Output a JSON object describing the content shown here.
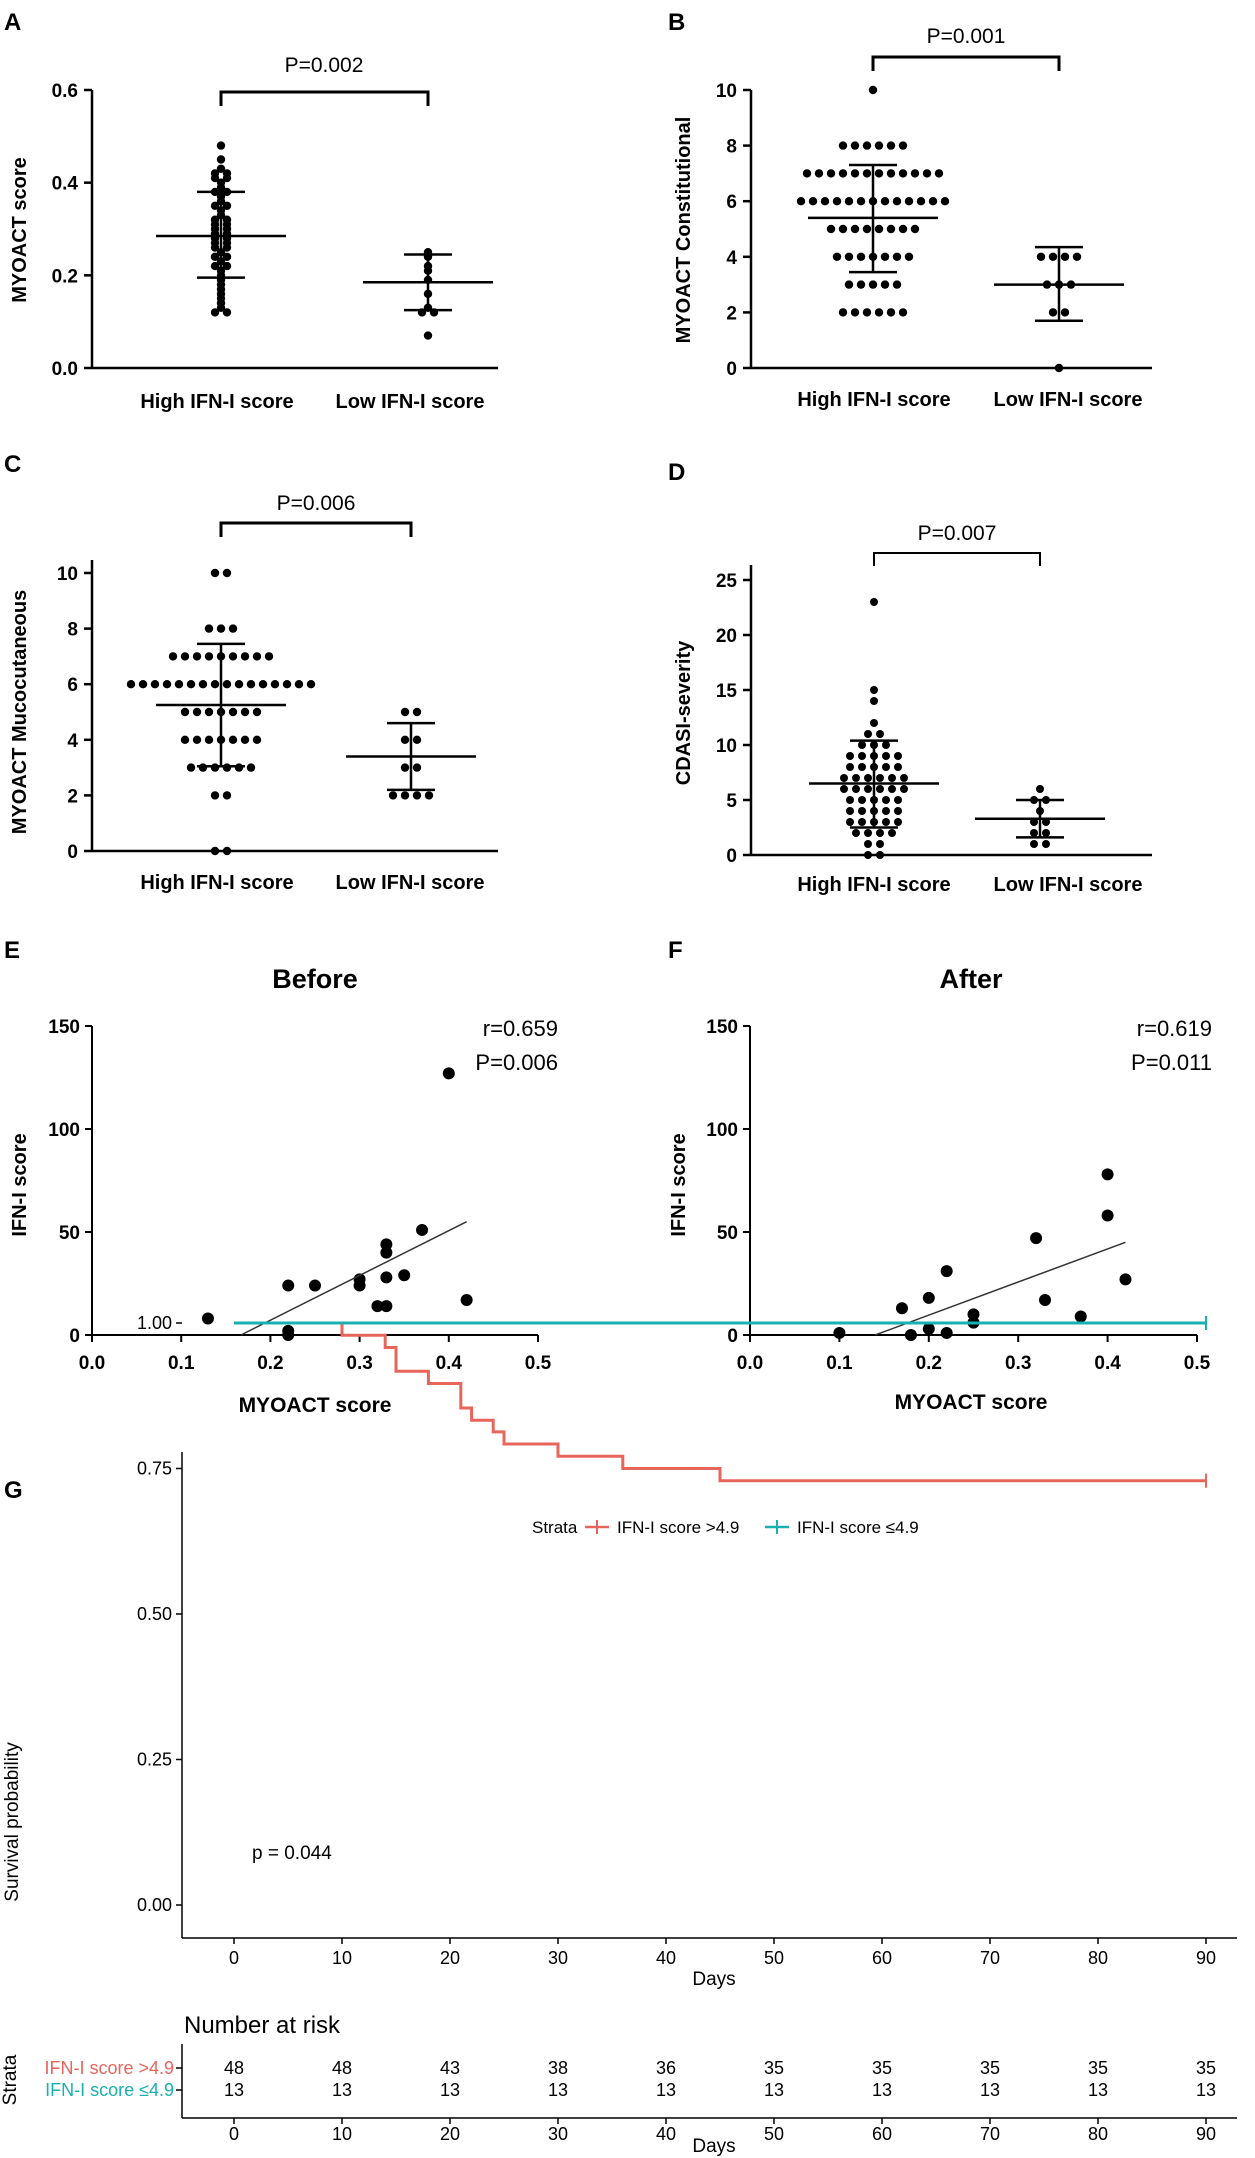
{
  "chart_data": [
    {
      "id": "A",
      "type": "scatter",
      "panel_label": "A",
      "ylabel": "MYOACT score",
      "ylim": [
        0,
        0.6
      ],
      "yticks": [
        "0.0",
        "0.2",
        "0.4",
        "0.6"
      ],
      "ytick_values": [
        0,
        0.2,
        0.4,
        0.6
      ],
      "categories": [
        "High IFN-I score",
        "Low IFN-I score"
      ],
      "pvalue": "P=0.002",
      "groups": [
        {
          "name": "High IFN-I score",
          "mean": 0.285,
          "sd_low": 0.195,
          "sd_high": 0.38,
          "values": [
            0.48,
            0.45,
            0.43,
            0.42,
            0.42,
            0.41,
            0.41,
            0.4,
            0.39,
            0.38,
            0.38,
            0.37,
            0.36,
            0.35,
            0.35,
            0.34,
            0.33,
            0.32,
            0.32,
            0.31,
            0.31,
            0.3,
            0.3,
            0.29,
            0.29,
            0.28,
            0.28,
            0.27,
            0.27,
            0.26,
            0.26,
            0.25,
            0.24,
            0.24,
            0.23,
            0.22,
            0.22,
            0.21,
            0.2,
            0.19,
            0.18,
            0.17,
            0.16,
            0.15,
            0.14,
            0.13,
            0.12,
            0.12
          ]
        },
        {
          "name": "Low IFN-I score",
          "mean": 0.185,
          "sd_low": 0.125,
          "sd_high": 0.245,
          "values": [
            0.25,
            0.24,
            0.22,
            0.21,
            0.19,
            0.16,
            0.13,
            0.12,
            0.12,
            0.07
          ]
        }
      ]
    },
    {
      "id": "B",
      "type": "scatter",
      "panel_label": "B",
      "ylabel": "MYOACT Constitutional",
      "ylim": [
        0,
        10
      ],
      "yticks": [
        "0",
        "2",
        "4",
        "6",
        "8",
        "10"
      ],
      "ytick_values": [
        0,
        2,
        4,
        6,
        8,
        10
      ],
      "categories": [
        "High IFN-I score",
        "Low IFN-I score"
      ],
      "pvalue": "P=0.001",
      "groups": [
        {
          "name": "High IFN-I score",
          "mean": 5.4,
          "sd_low": 3.45,
          "sd_high": 7.3,
          "values": [
            10,
            8,
            8,
            8,
            8,
            8,
            8,
            7,
            7,
            7,
            7,
            7,
            7,
            7,
            7,
            7,
            7,
            7,
            7,
            6,
            6,
            6,
            6,
            6,
            6,
            6,
            6,
            6,
            6,
            6,
            6,
            6,
            5,
            5,
            5,
            5,
            5,
            5,
            5,
            5,
            4,
            4,
            4,
            4,
            4,
            4,
            4,
            3,
            3,
            3,
            3,
            3,
            2,
            2,
            2,
            2,
            2,
            2
          ]
        },
        {
          "name": "Low IFN-I score",
          "mean": 3.0,
          "sd_low": 1.7,
          "sd_high": 4.35,
          "values": [
            4,
            4,
            4,
            4,
            3,
            3,
            3,
            2,
            2,
            0
          ]
        }
      ]
    },
    {
      "id": "C",
      "type": "scatter",
      "panel_label": "C",
      "ylabel": "MYOACT Mucocutaneous",
      "ylim": [
        0,
        10
      ],
      "yticks": [
        "0",
        "2",
        "4",
        "6",
        "8",
        "10"
      ],
      "ytick_values": [
        0,
        2,
        4,
        6,
        8,
        10
      ],
      "categories": [
        "High IFN-I score",
        "Low IFN-I score"
      ],
      "pvalue": "P=0.006",
      "groups": [
        {
          "name": "High IFN-I score",
          "mean": 5.25,
          "sd_low": 3.05,
          "sd_high": 7.45,
          "values": [
            10,
            10,
            8,
            8,
            8,
            7,
            7,
            7,
            7,
            7,
            7,
            7,
            7,
            7,
            6,
            6,
            6,
            6,
            6,
            6,
            6,
            6,
            6,
            6,
            6,
            6,
            6,
            6,
            6,
            6,
            5,
            5,
            5,
            5,
            5,
            5,
            5,
            4,
            4,
            4,
            4,
            4,
            4,
            4,
            3,
            3,
            3,
            3,
            3,
            3,
            2,
            2,
            0,
            0
          ]
        },
        {
          "name": "Low IFN-I score",
          "mean": 3.4,
          "sd_low": 2.2,
          "sd_high": 4.6,
          "values": [
            5,
            5,
            4,
            4,
            3,
            3,
            2,
            2,
            2,
            2
          ]
        }
      ]
    },
    {
      "id": "D",
      "type": "scatter",
      "panel_label": "D",
      "ylabel": "CDASI-severity",
      "ylim": [
        0,
        25
      ],
      "yticks": [
        "0",
        "5",
        "10",
        "15",
        "20",
        "25"
      ],
      "ytick_values": [
        0,
        5,
        10,
        15,
        20,
        25
      ],
      "categories": [
        "High IFN-I score",
        "Low IFN-I score"
      ],
      "pvalue": "P=0.007",
      "groups": [
        {
          "name": "High IFN-I score",
          "mean": 6.5,
          "sd_low": 2.5,
          "sd_high": 10.4,
          "values": [
            23,
            15,
            14,
            12,
            11,
            11,
            10,
            10,
            10,
            9,
            9,
            9,
            9,
            9,
            8,
            8,
            8,
            8,
            8,
            7,
            7,
            7,
            7,
            7,
            7,
            6,
            6,
            6,
            6,
            6,
            6,
            5,
            5,
            5,
            5,
            5,
            4,
            4,
            4,
            4,
            4,
            3,
            3,
            3,
            3,
            3,
            2,
            2,
            2,
            2,
            1,
            1,
            0,
            0
          ]
        },
        {
          "name": "Low IFN-I score",
          "mean": 3.3,
          "sd_low": 1.6,
          "sd_high": 5.0,
          "values": [
            6,
            5,
            5,
            4,
            3,
            3,
            2,
            2,
            1,
            1
          ]
        }
      ]
    },
    {
      "id": "E",
      "type": "scatter",
      "panel_label": "E",
      "title": "Before",
      "xlabel": "MYOACT score",
      "ylabel": "IFN-I score",
      "xlim": [
        0,
        0.5
      ],
      "ylim": [
        0,
        150
      ],
      "xticks": [
        "0.0",
        "0.1",
        "0.2",
        "0.3",
        "0.4",
        "0.5"
      ],
      "xtick_values": [
        0,
        0.1,
        0.2,
        0.3,
        0.4,
        0.5
      ],
      "yticks": [
        "0",
        "50",
        "100",
        "150"
      ],
      "ytick_values": [
        0,
        50,
        100,
        150
      ],
      "r_label": "r=0.659",
      "p_label": "P=0.006",
      "points": [
        [
          0.13,
          8
        ],
        [
          0.22,
          24
        ],
        [
          0.22,
          2
        ],
        [
          0.22,
          0
        ],
        [
          0.25,
          24
        ],
        [
          0.3,
          27
        ],
        [
          0.3,
          24
        ],
        [
          0.32,
          14
        ],
        [
          0.33,
          44
        ],
        [
          0.33,
          40
        ],
        [
          0.33,
          28
        ],
        [
          0.33,
          14
        ],
        [
          0.35,
          29
        ],
        [
          0.37,
          51
        ],
        [
          0.4,
          127
        ],
        [
          0.42,
          17
        ]
      ],
      "fit": [
        [
          0.167,
          0
        ],
        [
          0.42,
          55
        ]
      ]
    },
    {
      "id": "F",
      "type": "scatter",
      "panel_label": "F",
      "title": "After",
      "xlabel": "MYOACT score",
      "ylabel": "IFN-I score",
      "xlim": [
        0,
        0.5
      ],
      "ylim": [
        0,
        150
      ],
      "xticks": [
        "0.0",
        "0.1",
        "0.2",
        "0.3",
        "0.4",
        "0.5"
      ],
      "xtick_values": [
        0,
        0.1,
        0.2,
        0.3,
        0.4,
        0.5
      ],
      "yticks": [
        "0",
        "50",
        "100",
        "150"
      ],
      "ytick_values": [
        0,
        50,
        100,
        150
      ],
      "r_label": "r=0.619",
      "p_label": "P=0.011",
      "points": [
        [
          0.1,
          1
        ],
        [
          0.17,
          13
        ],
        [
          0.18,
          0
        ],
        [
          0.2,
          18
        ],
        [
          0.2,
          3
        ],
        [
          0.22,
          31
        ],
        [
          0.22,
          1
        ],
        [
          0.25,
          10
        ],
        [
          0.25,
          6
        ],
        [
          0.32,
          47
        ],
        [
          0.33,
          17
        ],
        [
          0.37,
          9
        ],
        [
          0.4,
          78
        ],
        [
          0.4,
          58
        ],
        [
          0.42,
          27
        ]
      ],
      "fit": [
        [
          0.14,
          0
        ],
        [
          0.42,
          45
        ]
      ]
    },
    {
      "id": "G",
      "type": "line",
      "panel_label": "G",
      "xlabel": "Days",
      "ylabel": "Survival probability",
      "xlim": [
        0,
        90
      ],
      "ylim": [
        0,
        1
      ],
      "xticks": [
        "0",
        "10",
        "20",
        "30",
        "40",
        "50",
        "60",
        "70",
        "80",
        "90"
      ],
      "xtick_values": [
        0,
        10,
        20,
        30,
        40,
        50,
        60,
        70,
        80,
        90
      ],
      "yticks": [
        "0.00",
        "0.25",
        "0.50",
        "0.75",
        "1.00"
      ],
      "ytick_values": [
        0,
        0.25,
        0.5,
        0.75,
        1
      ],
      "legend_title": "Strata",
      "pvalue": "p = 0.044",
      "series": [
        {
          "name": "IFN-I score >4.9",
          "color": "#e8655c",
          "steps": [
            [
              0,
              1
            ],
            [
              10,
              0.979
            ],
            [
              14,
              0.958
            ],
            [
              15,
              0.917
            ],
            [
              18,
              0.896
            ],
            [
              21,
              0.854
            ],
            [
              22,
              0.833
            ],
            [
              24,
              0.813
            ],
            [
              25,
              0.792
            ],
            [
              30,
              0.771
            ],
            [
              36,
              0.75
            ],
            [
              45,
              0.729
            ],
            [
              90,
              0.729
            ]
          ]
        },
        {
          "name": "IFN-I score ≤4.9",
          "color": "#19b0b0",
          "steps": [
            [
              0,
              1
            ],
            [
              90,
              1
            ]
          ]
        }
      ],
      "risk_table": {
        "title": "Number at risk",
        "strata_label": "Strata",
        "xlabel": "Days",
        "rows": [
          {
            "name": "IFN-I score >4.9",
            "color": "#e8655c",
            "values": [
              "48",
              "48",
              "43",
              "38",
              "36",
              "35",
              "35",
              "35",
              "35",
              "35"
            ]
          },
          {
            "name": "IFN-I score ≤4.9",
            "color": "#19b0b0",
            "values": [
              "13",
              "13",
              "13",
              "13",
              "13",
              "13",
              "13",
              "13",
              "13",
              "13"
            ]
          }
        ]
      }
    }
  ]
}
